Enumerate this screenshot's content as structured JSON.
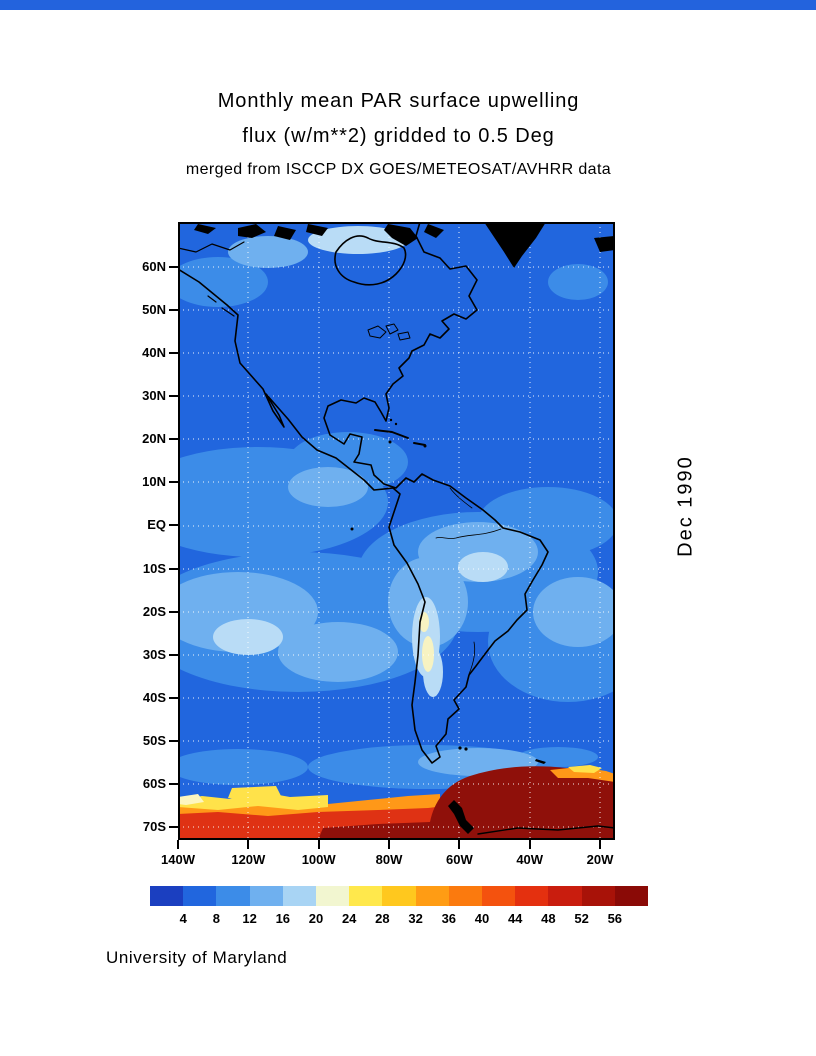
{
  "title": {
    "line1": "Monthly mean PAR surface upwelling",
    "line2": "flux (w/m**2) gridded to 0.5 Deg",
    "line3": "merged from ISCCP DX GOES/METEOSAT/AVHRR data"
  },
  "side_label": "Dec 1990",
  "credit": "University of Maryland",
  "axes": {
    "lat_ticks": [
      "60N",
      "50N",
      "40N",
      "30N",
      "20N",
      "10N",
      "EQ",
      "10S",
      "20S",
      "30S",
      "40S",
      "50S",
      "60S",
      "70S"
    ],
    "lon_ticks": [
      "140W",
      "120W",
      "100W",
      "80W",
      "60W",
      "40W",
      "20W"
    ]
  },
  "colorbar": {
    "tick_labels": [
      "4",
      "8",
      "12",
      "16",
      "20",
      "24",
      "28",
      "32",
      "36",
      "40",
      "44",
      "48",
      "52",
      "56"
    ],
    "colors": [
      "#1b3fc0",
      "#2166de",
      "#3c8ce8",
      "#6fb0ef",
      "#a8d4f4",
      "#f2f6d0",
      "#ffe84c",
      "#ffc81e",
      "#ff9c14",
      "#fb7a0e",
      "#f4520e",
      "#e4300f",
      "#c91d0e",
      "#a81208",
      "#8a0a06"
    ]
  },
  "map_colors": {
    "ocean_base": "#2166de",
    "light_patch_1": "#3c8ce8",
    "light_patch_2": "#6fb0ef",
    "pale_patch": "#b9dcf6",
    "cream_patch": "#f7f3c2",
    "ice_yellow": "#ffe24a",
    "ice_orange": "#ff9818",
    "ice_red": "#df3214",
    "ice_maroon": "#8f100a",
    "coastline": "#000000"
  },
  "chart_data": {
    "type": "heatmap",
    "title": "Monthly mean PAR surface upwelling flux (w/m**2) gridded to 0.5 Deg",
    "source": "merged from ISCCP DX GOES/METEOSAT/AVHRR data",
    "date": "Dec 1990",
    "units": "w/m**2",
    "credit": "University of Maryland",
    "lat_ticks": [
      "60N",
      "50N",
      "40N",
      "30N",
      "20N",
      "10N",
      "EQ",
      "10S",
      "20S",
      "30S",
      "40S",
      "50S",
      "60S",
      "70S"
    ],
    "lon_ticks": [
      "140W",
      "120W",
      "100W",
      "80W",
      "60W",
      "40W",
      "20W"
    ],
    "colorbar_levels": [
      4,
      8,
      12,
      16,
      20,
      24,
      28,
      32,
      36,
      40,
      44,
      48,
      52,
      56
    ],
    "palette": [
      "#1b3fc0",
      "#2166de",
      "#3c8ce8",
      "#6fb0ef",
      "#a8d4f4",
      "#f2f6d0",
      "#ffe84c",
      "#ffc81e",
      "#ff9c14",
      "#fb7a0e",
      "#f4520e",
      "#e4300f",
      "#c91d0e",
      "#a81208",
      "#8a0a06"
    ],
    "gridlines": "dotted graticule every 10 deg latitude / 20 deg longitude",
    "regions": [
      {
        "area": "open ocean and most land of the Americas",
        "approx_value_range": [
          4,
          12
        ]
      },
      {
        "area": "tropical / subtropical Pacific and Atlantic patches",
        "approx_value_range": [
          8,
          16
        ]
      },
      {
        "area": "Andes / Altiplano around 15S-30S",
        "approx_value_range": [
          16,
          24
        ]
      },
      {
        "area": "Southern Ocean ice edge fringe near 60S",
        "approx_value_range": [
          20,
          36
        ]
      },
      {
        "area": "Antarctic sea-ice zone south of 60S",
        "approx_value_range": [
          40,
          56
        ]
      }
    ]
  }
}
